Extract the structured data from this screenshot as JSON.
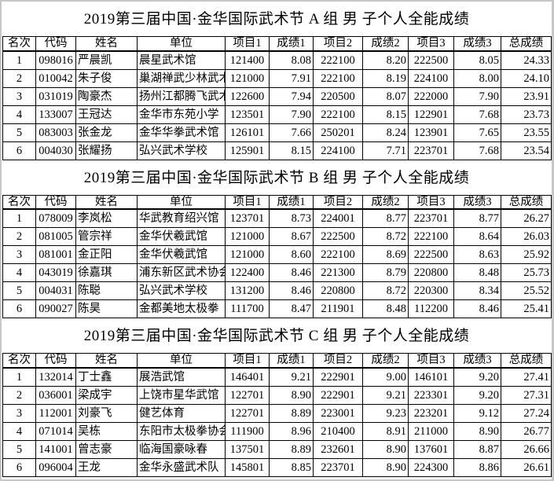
{
  "page": {
    "background": "#ffffff",
    "frame_color": "#c6c6c6",
    "text_color": "#000000",
    "grid_color": "#000000"
  },
  "columns": [
    "名次",
    "代码",
    "姓名",
    "单位",
    "项目1",
    "成绩1",
    "项目2",
    "成绩2",
    "项目3",
    "成绩3",
    "总成绩"
  ],
  "column_keys": [
    "rank",
    "code",
    "name",
    "unit",
    "event1",
    "score1",
    "event2",
    "score2",
    "event3",
    "score3",
    "total"
  ],
  "tables": [
    {
      "title": "2019第三届中国·金华国际武术节 A 组 男 子个人全能成绩",
      "rows": [
        [
          "1",
          "098016",
          "严晨凯",
          "晨星武术馆",
          "121400",
          "8.08",
          "222100",
          "8.20",
          "222500",
          "8.05",
          "24.33"
        ],
        [
          "2",
          "010042",
          "朱子俊",
          "巢湖禅武少林武术",
          "121000",
          "7.91",
          "222100",
          "8.19",
          "224100",
          "8.00",
          "24.10"
        ],
        [
          "3",
          "031019",
          "陶豪杰",
          "扬州江都腾飞武术",
          "122600",
          "7.94",
          "220500",
          "8.07",
          "222000",
          "7.90",
          "23.91"
        ],
        [
          "4",
          "133007",
          "王冠达",
          "金华市东苑小学",
          "123501",
          "7.90",
          "222100",
          "8.15",
          "122901",
          "7.68",
          "23.73"
        ],
        [
          "5",
          "083003",
          "张金龙",
          "金华华拳武术馆",
          "126101",
          "7.66",
          "250201",
          "8.24",
          "123901",
          "7.65",
          "23.55"
        ],
        [
          "6",
          "004030",
          "张耀扬",
          "弘兴武术学校",
          "125901",
          "8.15",
          "224100",
          "7.71",
          "223701",
          "7.68",
          "23.54"
        ]
      ]
    },
    {
      "title": "2019第三届中国·金华国际武术节 B 组 男 子个人全能成绩",
      "rows": [
        [
          "1",
          "078009",
          "李岚松",
          "华武教育绍兴馆",
          "123701",
          "8.73",
          "224001",
          "8.77",
          "223701",
          "8.77",
          "26.27"
        ],
        [
          "2",
          "081005",
          "管宗祥",
          "金华伏羲武馆",
          "121000",
          "8.67",
          "222500",
          "8.72",
          "222100",
          "8.64",
          "26.03"
        ],
        [
          "3",
          "081001",
          "金正阳",
          "金华伏羲武馆",
          "121000",
          "8.60",
          "222100",
          "8.69",
          "222500",
          "8.63",
          "25.92"
        ],
        [
          "4",
          "043019",
          "徐嘉琪",
          "浦东新区武术协会",
          "122400",
          "8.46",
          "221300",
          "8.79",
          "220800",
          "8.48",
          "25.73"
        ],
        [
          "5",
          "004031",
          "陈聪",
          "弘兴武术学校",
          "131200",
          "8.46",
          "220800",
          "8.72",
          "220300",
          "8.34",
          "25.52"
        ],
        [
          "6",
          "090027",
          "陈昊",
          "金都美地太极拳",
          "111700",
          "8.47",
          "211901",
          "8.48",
          "112200",
          "8.46",
          "25.41"
        ]
      ]
    },
    {
      "title": "2019第三届中国·金华国际武术节 C 组 男 子个人全能成绩",
      "rows": [
        [
          "1",
          "132014",
          "丁士鑫",
          "展浩武馆",
          "146401",
          "9.21",
          "222901",
          "9.00",
          "146101",
          "9.20",
          "27.41"
        ],
        [
          "2",
          "036001",
          "梁成宇",
          "上饶市星华武馆",
          "122701",
          "8.90",
          "222901",
          "9.21",
          "223301",
          "9.20",
          "27.31"
        ],
        [
          "3",
          "112001",
          "刘豪飞",
          "健艺体育",
          "122701",
          "8.89",
          "223001",
          "9.23",
          "223201",
          "9.12",
          "27.24"
        ],
        [
          "4",
          "071014",
          "吴栋",
          "东阳市太极拳协会",
          "111900",
          "8.96",
          "210400",
          "8.91",
          "211000",
          "8.90",
          "26.77"
        ],
        [
          "5",
          "141001",
          "曾志豪",
          "临海国豪咏春",
          "137501",
          "8.89",
          "232601",
          "8.90",
          "137601",
          "8.87",
          "26.66"
        ],
        [
          "6",
          "096004",
          "王龙",
          "金华永盛武术队",
          "145801",
          "8.85",
          "223701",
          "8.90",
          "224300",
          "8.86",
          "26.61"
        ]
      ]
    }
  ]
}
